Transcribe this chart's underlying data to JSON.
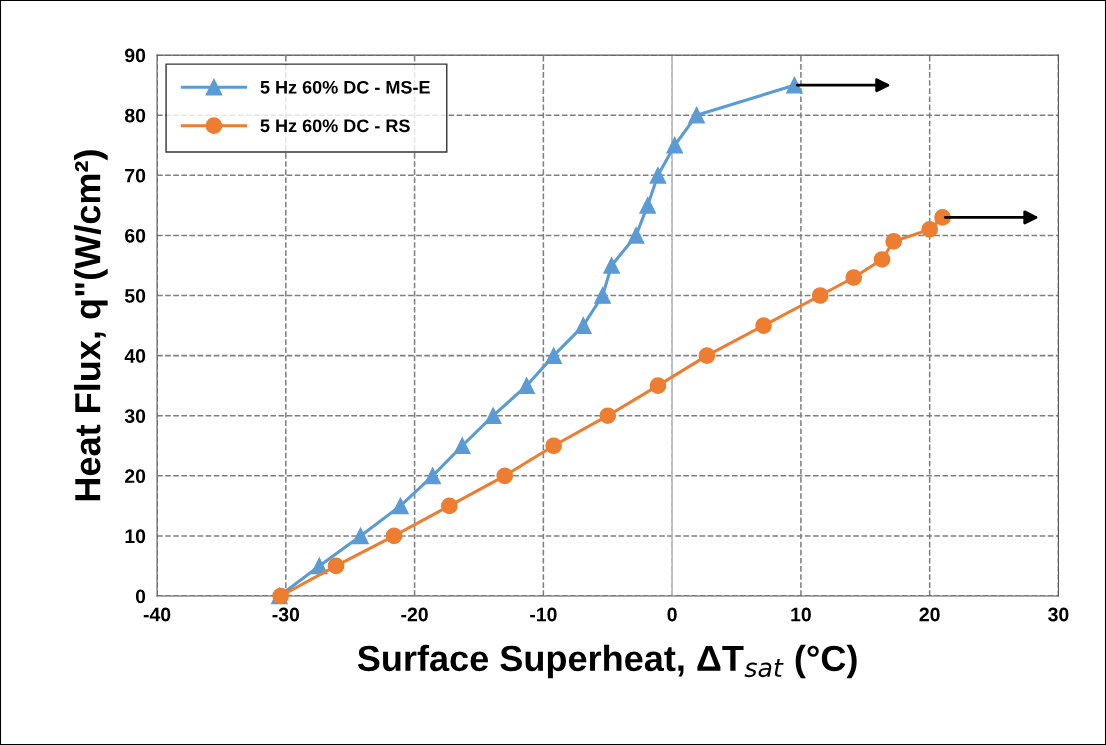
{
  "chart_data": {
    "type": "line",
    "xlabel": "Surface Superheat, ΔT$_{sat}$ (°C)",
    "ylabel": "Heat Flux, q\"(W/cm²)",
    "xlim": [
      -40,
      30
    ],
    "xticks": [
      -40,
      -30,
      -20,
      -10,
      0,
      10,
      20,
      30
    ],
    "ylim": [
      0,
      90
    ],
    "yticks": [
      0,
      10,
      20,
      30,
      40,
      50,
      60,
      70,
      80,
      90
    ],
    "grid": true,
    "legend": "top left",
    "line_style": "solid",
    "ref_lines": [
      {
        "axis": "x",
        "value": 0,
        "color": "#bfbfbf"
      }
    ],
    "series": [
      {
        "name": "5 Hz 60% DC - MS-E",
        "color": "#5b9bd5",
        "marker": "triangle",
        "x": [
          -30.5,
          -27.4,
          -24.2,
          -21.1,
          -18.6,
          -16.3,
          -13.9,
          -11.3,
          -9.2,
          -6.9,
          -5.4,
          -4.7,
          -2.8,
          -1.9,
          -1.1,
          0.2,
          1.9,
          9.5
        ],
        "values": [
          0,
          5,
          10,
          15,
          20,
          25,
          30,
          35,
          40,
          45,
          50,
          55,
          60,
          65,
          70,
          75,
          80,
          85
        ]
      },
      {
        "name": "5 Hz 60% DC - RS",
        "color": "#ed7d31",
        "marker": "circle",
        "x": [
          -30.4,
          -26.1,
          -21.6,
          -17.3,
          -13.0,
          -9.2,
          -5.0,
          -1.1,
          2.7,
          7.1,
          11.5,
          14.1,
          16.3,
          17.2,
          20.0,
          21.0
        ],
        "values": [
          0,
          5,
          10,
          15,
          20,
          25,
          30,
          35,
          40,
          45,
          50,
          53,
          56,
          59,
          61,
          63
        ]
      }
    ]
  }
}
